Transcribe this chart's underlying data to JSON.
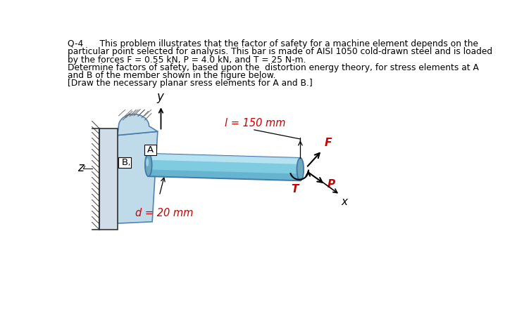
{
  "title_line1": "Q-4      This problem illustrates that the factor of safety for a machine element depends on the",
  "title_line2": "particular point selected for analysis. This bar is made of AISI 1050 cold-drawn steel and is loaded",
  "title_line3": "by the forces F = 0.55 kN, P = 4.0 kN, and T = 25 N-m.",
  "title_line4": "Determine factors of safety, based upon the  distortion energy theory, for stress elements at A",
  "title_line5": "and B of the member shown in the figure below.",
  "title_line6": "[Draw the necessary planar sress elements for A and B.]",
  "label_l": "l = 150 mm",
  "label_d": "d = 20 mm",
  "label_A": "A",
  "label_B": "B",
  "label_F": "F",
  "label_T": "T",
  "label_P": "P",
  "label_x": "x",
  "label_y": "y",
  "label_z": "z",
  "bg_color": "#ffffff",
  "text_color": "#000000",
  "red_color": "#cc0000",
  "plate_color": "#b8d8e8",
  "bar_main": "#7fcce0",
  "bar_highlight": "#c8ecf8",
  "bar_shadow": "#3a8ab0",
  "bar_endcap": "#5599cc",
  "wall_face": "#d0dde8",
  "outline_color": "#4477aa"
}
